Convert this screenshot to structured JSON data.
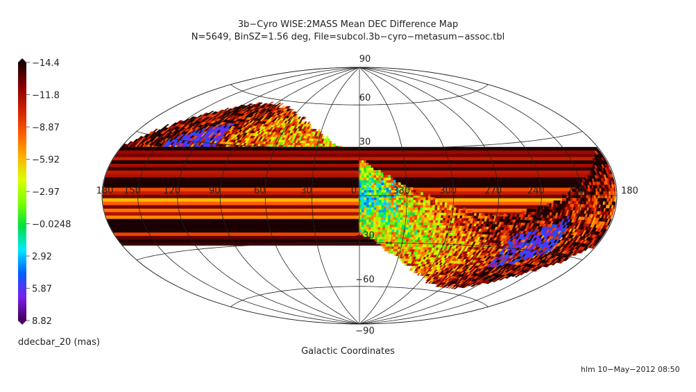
{
  "chart_data": {
    "type": "heatmap",
    "projection": "Hammer-Aitoff (galactic)",
    "title": "3b−Cyro WISE:2MASS Mean DEC Difference Map",
    "subtitle": "N=5649, BinSZ=1.56 deg, File=subcol.3b−cyro−metasum−assoc.tbl",
    "xlabel": "Galactic Coordinates",
    "colorbar": {
      "title": "ddecbar_20 (mas)",
      "tick_labels": [
        "−14.4",
        "−11.8",
        "−8.87",
        "−5.92",
        "−2.97",
        "−0.0248",
        "2.92",
        "5.87",
        "8.82"
      ],
      "range": [
        -14.4,
        8.82
      ],
      "colors_top_to_bottom": [
        "#1a0000",
        "#8b0000",
        "#d02000",
        "#ff5a00",
        "#ffb000",
        "#d8ff00",
        "#7aff00",
        "#00e040",
        "#00e8ff",
        "#0060ff",
        "#7a20f0",
        "#4a0060"
      ]
    },
    "longitude_labels": [
      "180",
      "150",
      "120",
      "90",
      "60",
      "30",
      "0",
      "330",
      "300",
      "270",
      "240",
      "210",
      "180"
    ],
    "latitude_labels": [
      "90",
      "60",
      "30",
      "−30",
      "−60",
      "−90"
    ],
    "coverage": "band along ecliptic, values mostly −3 to −14 mas (red) near edges, near 0 (green) near center, positive (blue/purple) at band crossings"
  },
  "footer": {
    "stamp": "hlm 10−May−2012 08:50"
  }
}
